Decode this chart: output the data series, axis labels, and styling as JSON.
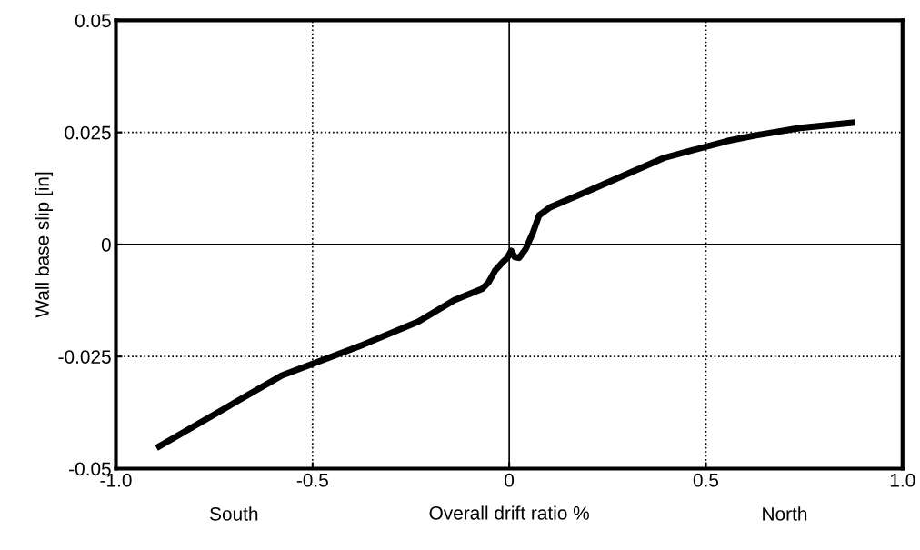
{
  "chart_data": {
    "type": "line",
    "xlabel": "Overall drift ratio %",
    "ylabel": "Wall base slip [in]",
    "xlim": [
      -1.0,
      1.0
    ],
    "ylim": [
      -0.05,
      0.05
    ],
    "xticks": [
      {
        "value": -1.0,
        "label": "-1.0"
      },
      {
        "value": -0.5,
        "label": "-0.5"
      },
      {
        "value": 0,
        "label": "0"
      },
      {
        "value": 0.5,
        "label": "0.5"
      },
      {
        "value": 1.0,
        "label": "1.0"
      }
    ],
    "yticks": [
      {
        "value": -0.05,
        "label": "-0.05"
      },
      {
        "value": -0.025,
        "label": "-0.025"
      },
      {
        "value": 0,
        "label": "0"
      },
      {
        "value": 0.025,
        "label": "0.025"
      },
      {
        "value": 0.05,
        "label": "0.05"
      }
    ],
    "marker": "none",
    "line_style": "solid",
    "ref_lines": [
      {
        "axis": "x",
        "value": 0,
        "line_style": "solid",
        "color": "#000000"
      },
      {
        "axis": "y",
        "value": 0,
        "line_style": "solid",
        "color": "#000000"
      },
      {
        "axis": "x",
        "value": -0.5,
        "line_style": "dotted",
        "color": "#000000"
      },
      {
        "axis": "x",
        "value": 0.5,
        "line_style": "dotted",
        "color": "#000000"
      },
      {
        "axis": "y",
        "value": 0.025,
        "line_style": "dotted",
        "color": "#000000"
      },
      {
        "axis": "y",
        "value": -0.025,
        "line_style": "dotted",
        "color": "#000000"
      }
    ],
    "annotations": [
      "South",
      "North"
    ],
    "series": [
      {
        "color": "#000000",
        "x": [
          -0.897,
          -0.578,
          -0.37,
          -0.231,
          -0.139,
          -0.069,
          -0.053,
          -0.035,
          -0.016,
          -0.005,
          0.005,
          0.014,
          0.025,
          0.042,
          0.06,
          0.076,
          0.104,
          0.208,
          0.393,
          0.555,
          0.624,
          0.74,
          0.879
        ],
        "values": [
          -0.0454,
          -0.0292,
          -0.0223,
          -0.0172,
          -0.0124,
          -0.0099,
          -0.0085,
          -0.0057,
          -0.0039,
          -0.003,
          -0.0014,
          -0.0028,
          -0.003,
          -0.001,
          0.0026,
          0.0065,
          0.0083,
          0.0122,
          0.0193,
          0.0231,
          0.0243,
          0.026,
          0.0272
        ]
      }
    ]
  }
}
